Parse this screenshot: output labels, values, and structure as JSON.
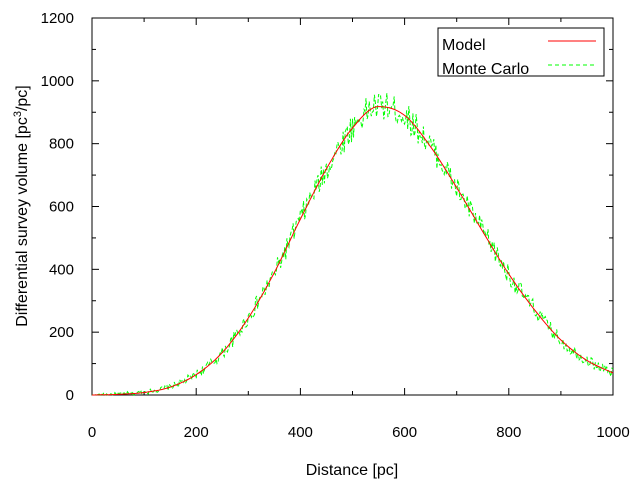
{
  "chart_data": {
    "type": "line",
    "xlabel": "Distance [pc]",
    "ylabel": {
      "prefix": "Differential survey volume [pc",
      "superscript": "3",
      "suffix": "/pc]"
    },
    "xlim": [
      0,
      1000
    ],
    "ylim": [
      0,
      1200
    ],
    "x_ticks": [
      0,
      200,
      400,
      600,
      800,
      1000
    ],
    "y_ticks": [
      0,
      200,
      400,
      600,
      800,
      1000,
      1200
    ],
    "grid": false,
    "legend_position": "top-right",
    "series": [
      {
        "name": "Model",
        "style": "solid",
        "color": "#ff0000",
        "x": [
          0,
          50,
          100,
          150,
          200,
          250,
          300,
          350,
          400,
          450,
          500,
          550,
          600,
          650,
          700,
          750,
          800,
          850,
          900,
          950,
          1000
        ],
        "y": [
          0,
          2,
          8,
          25,
          65,
          135,
          245,
          390,
          560,
          720,
          850,
          918,
          890,
          790,
          660,
          520,
          385,
          270,
          175,
          110,
          70
        ]
      },
      {
        "name": "Monte Carlo",
        "style": "dashed",
        "color": "#00ff00",
        "x": [
          0,
          50,
          100,
          150,
          200,
          250,
          300,
          350,
          400,
          450,
          500,
          550,
          600,
          650,
          700,
          750,
          800,
          850,
          900,
          950,
          1000
        ],
        "y": [
          0,
          3,
          9,
          26,
          66,
          133,
          247,
          388,
          562,
          718,
          852,
          920,
          888,
          792,
          658,
          522,
          383,
          271,
          174,
          111,
          69
        ]
      }
    ]
  }
}
